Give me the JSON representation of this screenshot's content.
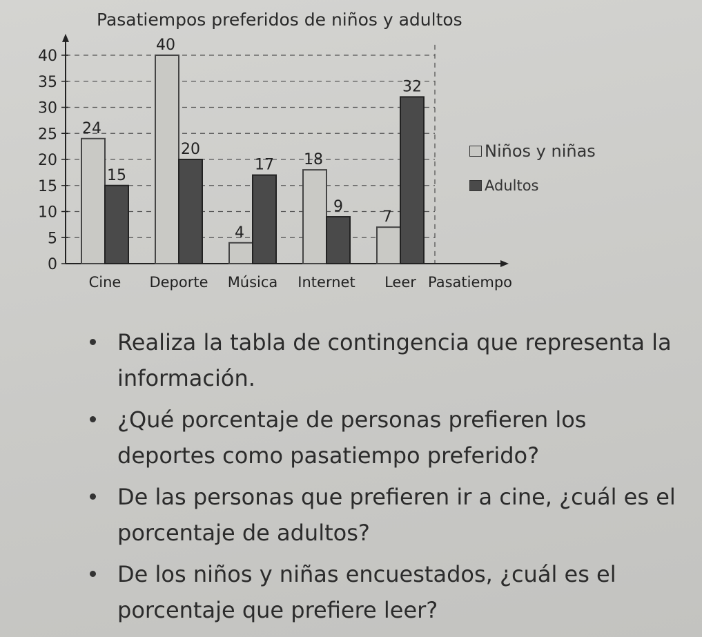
{
  "chart_data": {
    "type": "bar",
    "title": "Pasatiempos preferidos de niños y adultos",
    "xlabel": "Pasatiempo",
    "categories": [
      "Cine",
      "Deporte",
      "Música",
      "Internet",
      "Leer"
    ],
    "series": [
      {
        "name": "Niños y niñas",
        "values": [
          24,
          40,
          4,
          18,
          7
        ],
        "color": "#c9c9c5"
      },
      {
        "name": "Adultos",
        "values": [
          15,
          20,
          17,
          9,
          32
        ],
        "color": "#4a4a4a"
      }
    ],
    "y_ticks": [
      0,
      5,
      10,
      15,
      20,
      25,
      30,
      35,
      40
    ],
    "ylim": [
      0,
      42
    ],
    "grid": true,
    "legend_position": "right"
  },
  "questions": [
    "Realiza la tabla de contingencia que representa la información.",
    "¿Qué porcentaje de personas prefieren los deportes como pasatiempo preferido?",
    "De las personas que prefieren ir a cine, ¿cuál es el porcentaje de adultos?",
    "De los niños y niñas encuestados, ¿cuál es el porcentaje que prefiere leer?"
  ]
}
